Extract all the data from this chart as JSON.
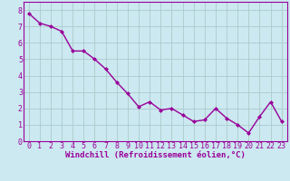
{
  "x": [
    0,
    1,
    2,
    3,
    4,
    5,
    6,
    7,
    8,
    9,
    10,
    11,
    12,
    13,
    14,
    15,
    16,
    17,
    18,
    19,
    20,
    21,
    22,
    23
  ],
  "y": [
    7.8,
    7.2,
    7.0,
    6.7,
    5.5,
    5.5,
    5.0,
    4.4,
    3.6,
    2.9,
    2.1,
    2.4,
    1.9,
    2.0,
    1.6,
    1.2,
    1.3,
    2.0,
    1.4,
    1.0,
    0.5,
    1.5,
    2.4,
    1.2
  ],
  "line_color": "#990099",
  "marker": "D",
  "marker_size": 2.0,
  "bg_color": "#cce8f0",
  "grid_color": "#aacccc",
  "xlabel": "Windchill (Refroidissement éolien,°C)",
  "xlim": [
    -0.5,
    23.5
  ],
  "ylim": [
    0,
    8.5
  ],
  "xticks": [
    0,
    1,
    2,
    3,
    4,
    5,
    6,
    7,
    8,
    9,
    10,
    11,
    12,
    13,
    14,
    15,
    16,
    17,
    18,
    19,
    20,
    21,
    22,
    23
  ],
  "yticks": [
    0,
    1,
    2,
    3,
    4,
    5,
    6,
    7,
    8
  ],
  "xlabel_fontsize": 6.5,
  "tick_fontsize": 6.0,
  "line_width": 1.0
}
